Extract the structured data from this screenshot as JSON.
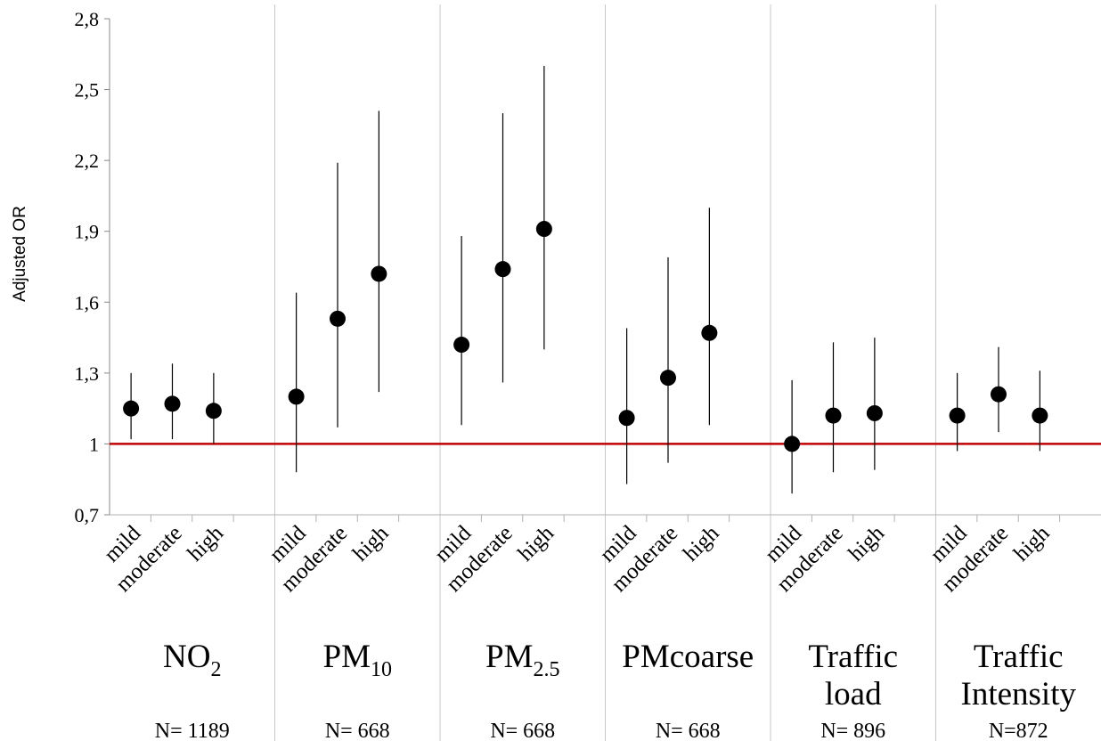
{
  "chart_data": {
    "type": "scatter",
    "title": "",
    "ylabel": "Adjusted OR",
    "xlabel": "",
    "ylim": [
      0.7,
      2.8
    ],
    "yticks": [
      "0,7",
      "1",
      "1,3",
      "1,6",
      "1,9",
      "2,2",
      "2,5",
      "2,8"
    ],
    "ytick_values": [
      0.7,
      1.0,
      1.3,
      1.6,
      1.9,
      2.2,
      2.5,
      2.8
    ],
    "reference_line": {
      "y": 1.0,
      "color": "#c00000"
    },
    "grid": false,
    "legend": "none",
    "categories": [
      "mild",
      "moderate",
      "high"
    ],
    "groups": [
      {
        "label": "NO",
        "subscript": "2",
        "n_label": "N= 1189",
        "points": [
          {
            "category": "mild",
            "or": 1.15,
            "ci_low": 1.02,
            "ci_high": 1.3
          },
          {
            "category": "moderate",
            "or": 1.17,
            "ci_low": 1.02,
            "ci_high": 1.34
          },
          {
            "category": "high",
            "or": 1.14,
            "ci_low": 1.0,
            "ci_high": 1.3
          }
        ]
      },
      {
        "label": "PM",
        "subscript": "10",
        "n_label": "N= 668",
        "points": [
          {
            "category": "mild",
            "or": 1.2,
            "ci_low": 0.88,
            "ci_high": 1.64
          },
          {
            "category": "moderate",
            "or": 1.53,
            "ci_low": 1.07,
            "ci_high": 2.19
          },
          {
            "category": "high",
            "or": 1.72,
            "ci_low": 1.22,
            "ci_high": 2.41
          }
        ]
      },
      {
        "label": "PM",
        "subscript": "2.5",
        "n_label": "N= 668",
        "points": [
          {
            "category": "mild",
            "or": 1.42,
            "ci_low": 1.08,
            "ci_high": 1.88
          },
          {
            "category": "moderate",
            "or": 1.74,
            "ci_low": 1.26,
            "ci_high": 2.4
          },
          {
            "category": "high",
            "or": 1.91,
            "ci_low": 1.4,
            "ci_high": 2.6
          }
        ]
      },
      {
        "label": "PMcoarse",
        "subscript": "",
        "n_label": "N= 668",
        "points": [
          {
            "category": "mild",
            "or": 1.11,
            "ci_low": 0.83,
            "ci_high": 1.49
          },
          {
            "category": "moderate",
            "or": 1.28,
            "ci_low": 0.92,
            "ci_high": 1.79
          },
          {
            "category": "high",
            "or": 1.47,
            "ci_low": 1.08,
            "ci_high": 2.0
          }
        ]
      },
      {
        "label": "Traffic\nload",
        "subscript": "",
        "n_label": "N= 896",
        "points": [
          {
            "category": "mild",
            "or": 1.0,
            "ci_low": 0.79,
            "ci_high": 1.27
          },
          {
            "category": "moderate",
            "or": 1.12,
            "ci_low": 0.88,
            "ci_high": 1.43
          },
          {
            "category": "high",
            "or": 1.13,
            "ci_low": 0.89,
            "ci_high": 1.45
          }
        ]
      },
      {
        "label": "Traffic\nIntensity",
        "subscript": "",
        "n_label": "N=872",
        "points": [
          {
            "category": "mild",
            "or": 1.12,
            "ci_low": 0.97,
            "ci_high": 1.3
          },
          {
            "category": "moderate",
            "or": 1.21,
            "ci_low": 1.05,
            "ci_high": 1.41
          },
          {
            "category": "high",
            "or": 1.12,
            "ci_low": 0.97,
            "ci_high": 1.31
          }
        ]
      }
    ]
  }
}
